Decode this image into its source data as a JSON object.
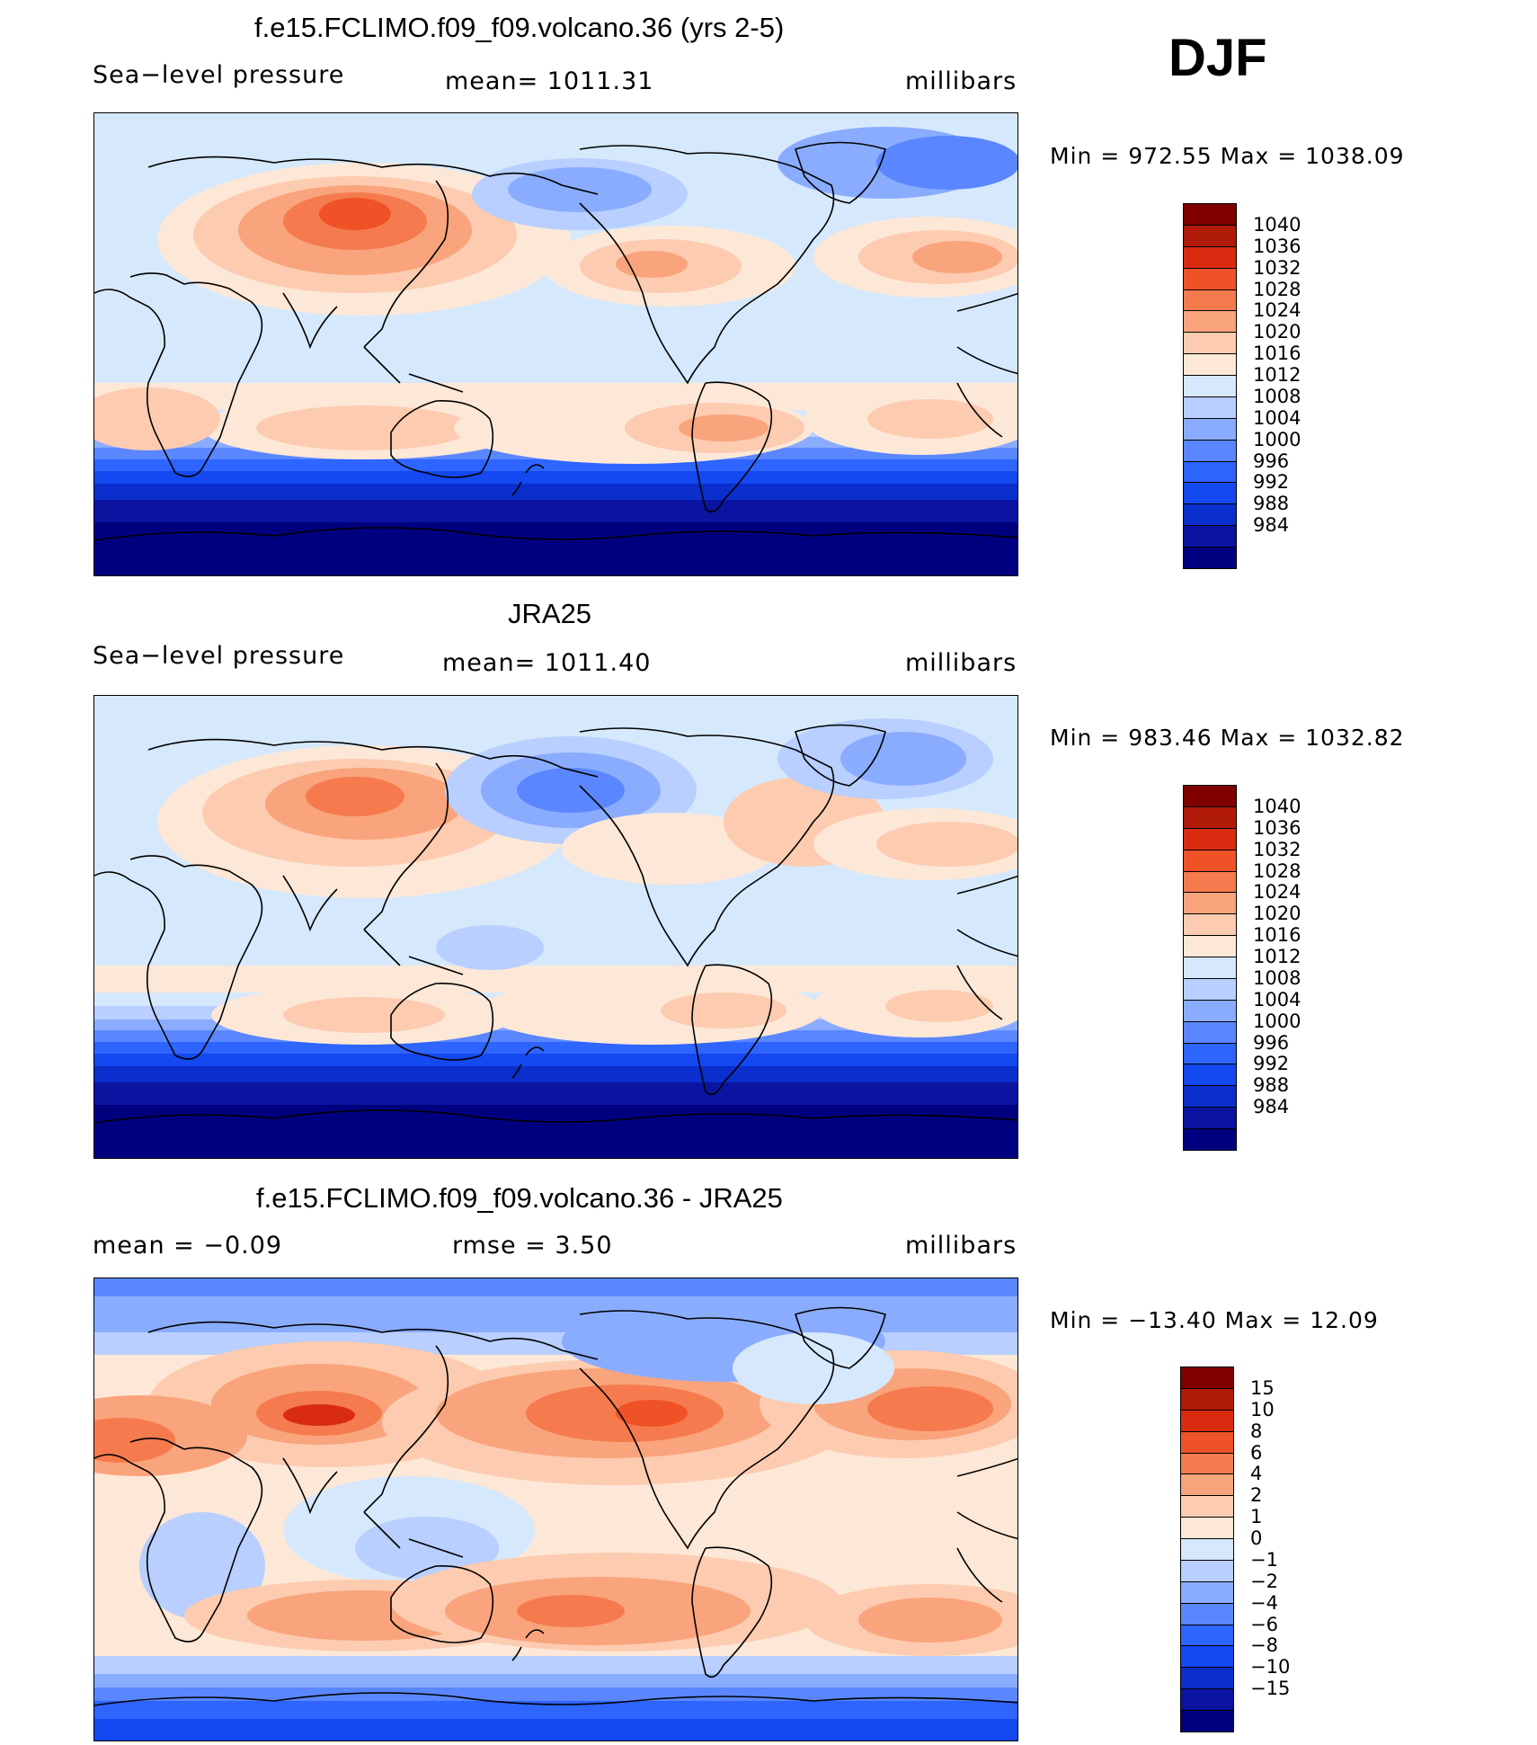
{
  "season_label": "DJF",
  "colors": {
    "abs_scale": [
      "#00007f",
      "#0a14a0",
      "#0a2fcc",
      "#1448f0",
      "#2e64ff",
      "#5a87ff",
      "#8aacff",
      "#b8cfff",
      "#d6e8fb",
      "#fde8d7",
      "#fccbb0",
      "#f9a47c",
      "#f57b4e",
      "#ef5226",
      "#d92b10",
      "#b01a08",
      "#800000"
    ],
    "diff_scale": [
      "#00007f",
      "#0a14a0",
      "#0a2fcc",
      "#1448f0",
      "#2e64ff",
      "#5a87ff",
      "#8aacff",
      "#b8cfff",
      "#d6e8fb",
      "#fde8d7",
      "#fccbb0",
      "#f9a47c",
      "#f57b4e",
      "#ef5226",
      "#d92b10",
      "#b01a08",
      "#800000"
    ]
  },
  "chart_data": [
    {
      "type": "heatmap",
      "title": "f.e15.FCLIMO.f09_f09.volcano.36 (yrs 2-5)",
      "variable": "Sea−level pressure",
      "stat": "mean=  1011.31",
      "units": "millibars",
      "minmax": "Min  =  972.55  Max  =  1038.09",
      "colorbar_levels": [
        "1040",
        "1036",
        "1032",
        "1028",
        "1024",
        "1020",
        "1016",
        "1012",
        "1008",
        "1004",
        "1000",
        "996",
        "992",
        "988",
        "984"
      ],
      "min": 972.55,
      "max": 1038.09,
      "mean": 1011.31
    },
    {
      "type": "heatmap",
      "title": "JRA25",
      "variable": "Sea−level pressure",
      "stat": "mean=  1011.40",
      "units": "millibars",
      "minmax": "Min  =  983.46  Max  =  1032.82",
      "colorbar_levels": [
        "1040",
        "1036",
        "1032",
        "1028",
        "1024",
        "1020",
        "1016",
        "1012",
        "1008",
        "1004",
        "1000",
        "996",
        "992",
        "988",
        "984"
      ],
      "min": 983.46,
      "max": 1032.82,
      "mean": 1011.4
    },
    {
      "type": "heatmap",
      "title": "f.e15.FCLIMO.f09_f09.volcano.36 - JRA25",
      "stat_mean": "mean  =    −0.09",
      "stat_rmse": "rmse  =     3.50",
      "units": "millibars",
      "minmax": "Min  =  −13.40  Max  =     12.09",
      "colorbar_levels": [
        "15",
        "10",
        "8",
        "6",
        "4",
        "2",
        "1",
        "0",
        "−1",
        "−2",
        "−4",
        "−6",
        "−8",
        "−10",
        "−15"
      ],
      "min": -13.4,
      "max": 12.09,
      "mean": -0.09,
      "rmse": 3.5
    }
  ]
}
